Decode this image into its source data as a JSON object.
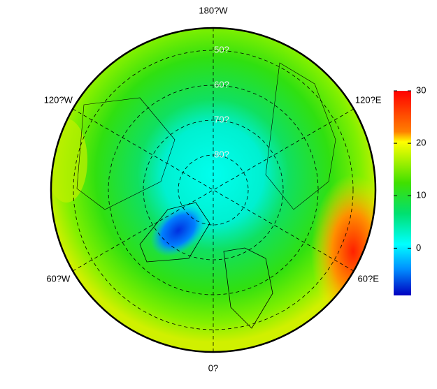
{
  "map": {
    "longitude_labels": [
      "180?W",
      "120?E",
      "60?E",
      "0?",
      "60?W",
      "120?W"
    ],
    "latitude_labels": [
      "50?",
      "60?",
      "70?",
      "80?"
    ],
    "colorbar": {
      "lim": [
        -9,
        30
      ],
      "ticks": [
        0,
        10,
        20,
        30
      ]
    }
  }
}
